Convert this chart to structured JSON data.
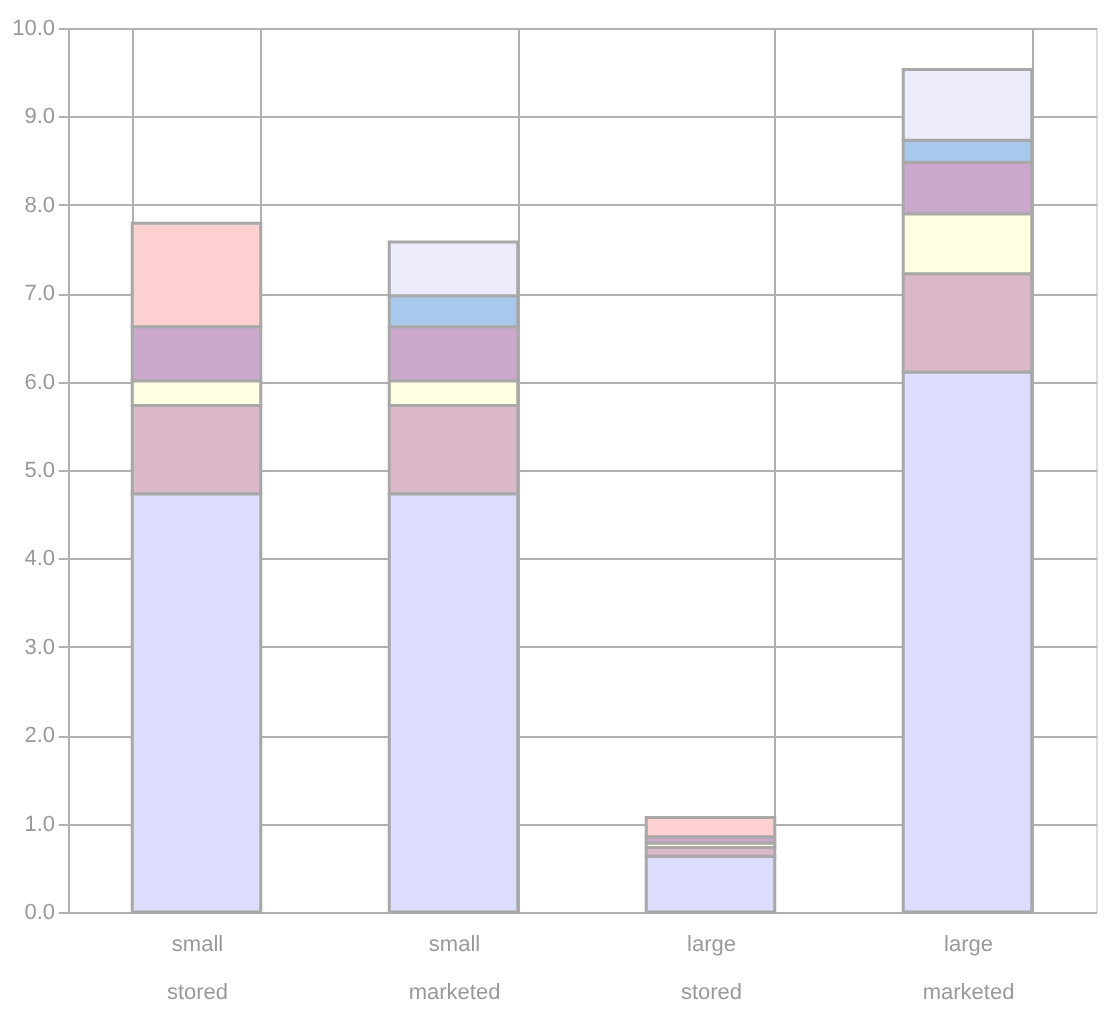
{
  "chart_data": {
    "type": "bar",
    "stacked": true,
    "categories": [
      "small stored",
      "small marketed",
      "large stored",
      "large marketed"
    ],
    "series": [
      {
        "color": "#dcdcfc",
        "values": [
          4.73,
          4.73,
          0.63,
          6.11
        ]
      },
      {
        "color": "#dbb8c8",
        "values": [
          1.0,
          1.0,
          0.1,
          1.11
        ]
      },
      {
        "color": "#fefee0",
        "values": [
          0.28,
          0.28,
          0.05,
          0.68
        ]
      },
      {
        "color": "#cca8cc",
        "values": [
          0.61,
          0.61,
          0.07,
          0.58
        ]
      },
      {
        "color": "#a8c8ec",
        "values": [
          null,
          0.35,
          null,
          0.25
        ]
      },
      {
        "color": "#ececfc",
        "values": [
          null,
          0.61,
          null,
          0.8
        ]
      },
      {
        "color": "#fed0d0",
        "values": [
          1.17,
          null,
          0.22,
          null
        ]
      }
    ],
    "ylim": [
      0,
      10
    ],
    "yticks": [
      {
        "value": 0,
        "label": "0.0"
      },
      {
        "value": 1,
        "label": "1.0"
      },
      {
        "value": 2,
        "label": "2.0"
      },
      {
        "value": 3,
        "label": "3.0"
      },
      {
        "value": 4,
        "label": "4.0"
      },
      {
        "value": 5,
        "label": "5.0"
      },
      {
        "value": 6,
        "label": "6.0"
      },
      {
        "value": 7,
        "label": "7.0"
      },
      {
        "value": 8,
        "label": "8.0"
      },
      {
        "value": 9,
        "label": "9.0"
      },
      {
        "value": 10,
        "label": "10.0"
      }
    ],
    "grid": true
  }
}
